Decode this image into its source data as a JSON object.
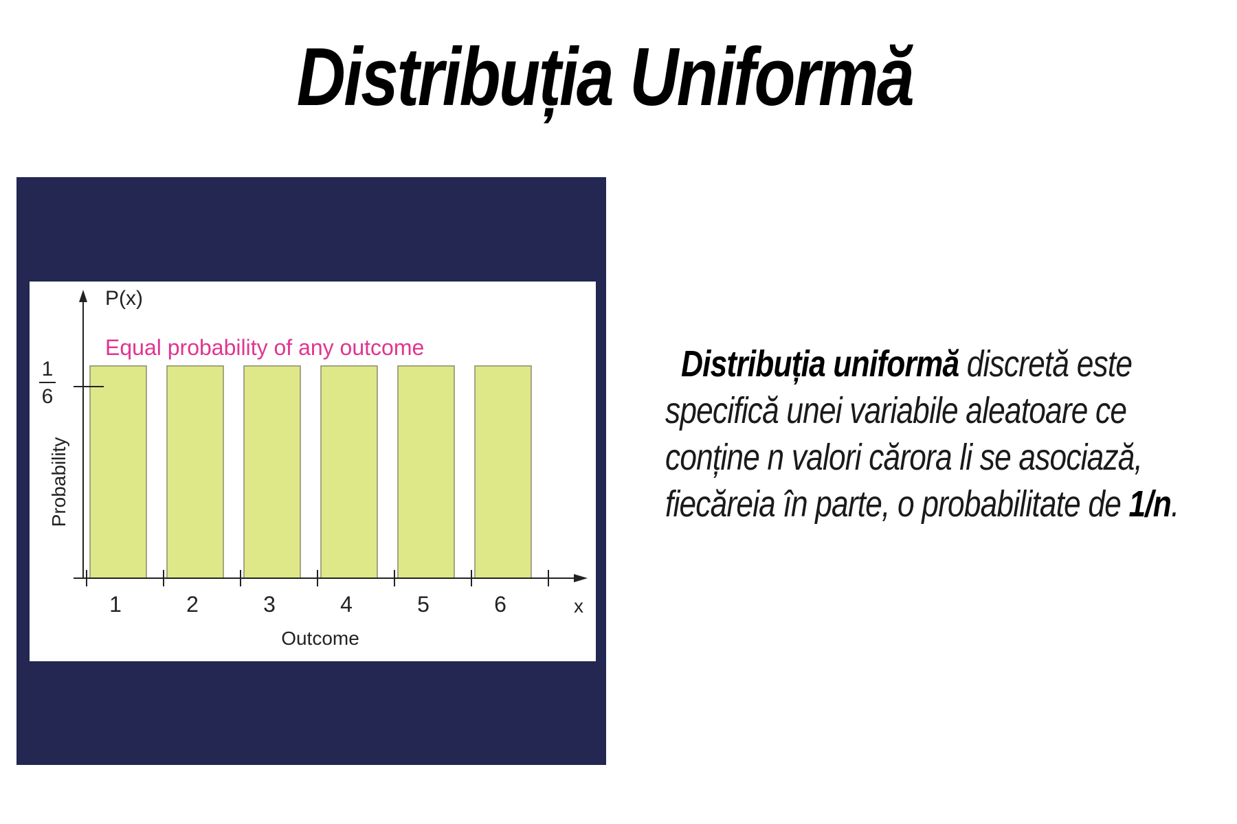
{
  "title": "Distribuția Uniformă",
  "description": {
    "line1_bold": "Distribuția uniformă",
    "line1_rest": " discretă este",
    "line2": "specifică unei variabile aleatoare ce",
    "line3": "conține n valori cărora li se asociază,",
    "line4_text": "fiecăreia în parte, o probabilitate de ",
    "line4_bold": "1/n",
    "line4_end": "."
  },
  "colors": {
    "panel": "#232752",
    "bar_fill": "#dfe888",
    "bar_stroke": "#8a8a6a",
    "annotation": "#e0358f"
  },
  "chart_data": {
    "type": "bar",
    "categories": [
      "1",
      "2",
      "3",
      "4",
      "5",
      "6"
    ],
    "values": [
      0.1667,
      0.1667,
      0.1667,
      0.1667,
      0.1667,
      0.1667
    ],
    "y_tick_label": {
      "numerator": "1",
      "denominator": "6"
    },
    "y_axis_symbol": "P(x)",
    "x_axis_symbol": "x",
    "ylabel": "Probability",
    "xlabel": "Outcome",
    "annotation": "Equal probability of any outcome",
    "ylim": [
      0,
      0.2222
    ],
    "grid": false,
    "legend": "none"
  }
}
